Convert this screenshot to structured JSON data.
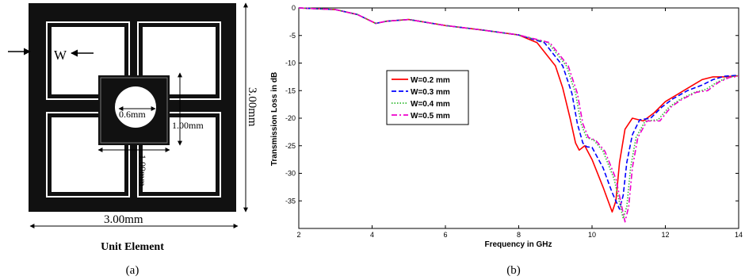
{
  "panel_a": {
    "w_label": "W",
    "hole_label": "0.6mm",
    "inner_height_label": "1.00mm",
    "inner_width_label": "1.00mm",
    "outer_height_label": "3.00mm",
    "outer_width_label": "3.00mm",
    "caption_title": "Unit Element",
    "caption": "(a)"
  },
  "panel_b": {
    "caption": "(b)"
  },
  "chart_data": {
    "type": "line",
    "xlabel": "Frequency in GHz",
    "ylabel": "Transmission Loss in dB",
    "xlim": [
      2,
      14
    ],
    "ylim": [
      -40,
      0
    ],
    "x_ticks": [
      2,
      4,
      6,
      8,
      10,
      12,
      14
    ],
    "y_ticks": [
      0,
      -5,
      -10,
      -15,
      -20,
      -25,
      -30,
      -35
    ],
    "grid": false,
    "legend_position": "left-center",
    "series": [
      {
        "name": "W=0.2 mm",
        "color": "#ff0000",
        "dash": "solid",
        "points": [
          [
            2,
            0
          ],
          [
            3,
            -0.3
          ],
          [
            3.6,
            -1.2
          ],
          [
            4.1,
            -2.8
          ],
          [
            4.4,
            -2.4
          ],
          [
            5,
            -2.1
          ],
          [
            6,
            -3.2
          ],
          [
            7,
            -4
          ],
          [
            8,
            -4.9
          ],
          [
            8.5,
            -6.3
          ],
          [
            9,
            -10.5
          ],
          [
            9.2,
            -14.5
          ],
          [
            9.4,
            -20
          ],
          [
            9.55,
            -24.5
          ],
          [
            9.65,
            -25.8
          ],
          [
            9.8,
            -25
          ],
          [
            10,
            -27.5
          ],
          [
            10.3,
            -32.5
          ],
          [
            10.55,
            -37
          ],
          [
            10.65,
            -35
          ],
          [
            10.75,
            -28
          ],
          [
            10.9,
            -22
          ],
          [
            11.1,
            -20
          ],
          [
            11.4,
            -20.5
          ],
          [
            11.7,
            -19
          ],
          [
            12,
            -17
          ],
          [
            12.3,
            -15.8
          ],
          [
            12.7,
            -14.2
          ],
          [
            13,
            -13
          ],
          [
            13.3,
            -12.5
          ],
          [
            13.6,
            -12.5
          ],
          [
            14,
            -12.3
          ]
        ]
      },
      {
        "name": "W=0.3 mm",
        "color": "#0000ff",
        "dash": "dashed",
        "points": [
          [
            2,
            0
          ],
          [
            3,
            -0.3
          ],
          [
            3.6,
            -1.2
          ],
          [
            4.1,
            -2.8
          ],
          [
            4.4,
            -2.4
          ],
          [
            5,
            -2.1
          ],
          [
            6,
            -3.2
          ],
          [
            7,
            -4
          ],
          [
            8,
            -4.9
          ],
          [
            8.7,
            -6.3
          ],
          [
            9.2,
            -10.5
          ],
          [
            9.45,
            -15.5
          ],
          [
            9.6,
            -21
          ],
          [
            9.75,
            -24.5
          ],
          [
            9.85,
            -25.2
          ],
          [
            10,
            -25.3
          ],
          [
            10.3,
            -29
          ],
          [
            10.55,
            -33.5
          ],
          [
            10.75,
            -36.5
          ],
          [
            10.85,
            -34
          ],
          [
            10.95,
            -28
          ],
          [
            11.1,
            -23
          ],
          [
            11.3,
            -20.3
          ],
          [
            11.6,
            -20
          ],
          [
            11.9,
            -18
          ],
          [
            12.2,
            -16.5
          ],
          [
            12.6,
            -15
          ],
          [
            13,
            -14
          ],
          [
            13.3,
            -13
          ],
          [
            13.6,
            -12.4
          ],
          [
            14,
            -12.2
          ]
        ]
      },
      {
        "name": "W=0.4 mm",
        "color": "#33bb33",
        "dash": "dotted",
        "points": [
          [
            2,
            0
          ],
          [
            3,
            -0.3
          ],
          [
            3.6,
            -1.2
          ],
          [
            4.1,
            -2.8
          ],
          [
            4.4,
            -2.4
          ],
          [
            5,
            -2.1
          ],
          [
            6,
            -3.2
          ],
          [
            7,
            -4
          ],
          [
            8,
            -4.9
          ],
          [
            8.8,
            -6.3
          ],
          [
            9.3,
            -10.5
          ],
          [
            9.55,
            -15.5
          ],
          [
            9.7,
            -21
          ],
          [
            9.85,
            -23.5
          ],
          [
            10.05,
            -24
          ],
          [
            10.3,
            -26
          ],
          [
            10.6,
            -31
          ],
          [
            10.85,
            -38.2
          ],
          [
            10.95,
            -36
          ],
          [
            11.05,
            -29
          ],
          [
            11.2,
            -23.5
          ],
          [
            11.45,
            -20.5
          ],
          [
            11.8,
            -20.3
          ],
          [
            12.1,
            -18
          ],
          [
            12.4,
            -16.6
          ],
          [
            12.8,
            -15.3
          ],
          [
            13.1,
            -14.8
          ],
          [
            13.4,
            -13.5
          ],
          [
            13.7,
            -12.6
          ],
          [
            14,
            -12.3
          ]
        ]
      },
      {
        "name": "W=0.5 mm",
        "color": "#ee00cc",
        "dash": "dashdot",
        "points": [
          [
            2,
            0
          ],
          [
            3,
            -0.3
          ],
          [
            3.6,
            -1.2
          ],
          [
            4.1,
            -2.8
          ],
          [
            4.4,
            -2.4
          ],
          [
            5,
            -2.1
          ],
          [
            6,
            -3.2
          ],
          [
            7,
            -4
          ],
          [
            8,
            -4.9
          ],
          [
            8.85,
            -6.3
          ],
          [
            9.35,
            -10.5
          ],
          [
            9.6,
            -15.5
          ],
          [
            9.75,
            -21
          ],
          [
            9.9,
            -23.5
          ],
          [
            10.1,
            -24
          ],
          [
            10.35,
            -26
          ],
          [
            10.65,
            -31
          ],
          [
            10.9,
            -38.8
          ],
          [
            11,
            -36
          ],
          [
            11.1,
            -29
          ],
          [
            11.25,
            -23.5
          ],
          [
            11.5,
            -20.5
          ],
          [
            11.85,
            -20.5
          ],
          [
            12.15,
            -18
          ],
          [
            12.45,
            -16.6
          ],
          [
            12.85,
            -15.3
          ],
          [
            13.15,
            -15
          ],
          [
            13.45,
            -13.5
          ],
          [
            13.75,
            -12.6
          ],
          [
            14,
            -12.4
          ]
        ]
      }
    ]
  }
}
